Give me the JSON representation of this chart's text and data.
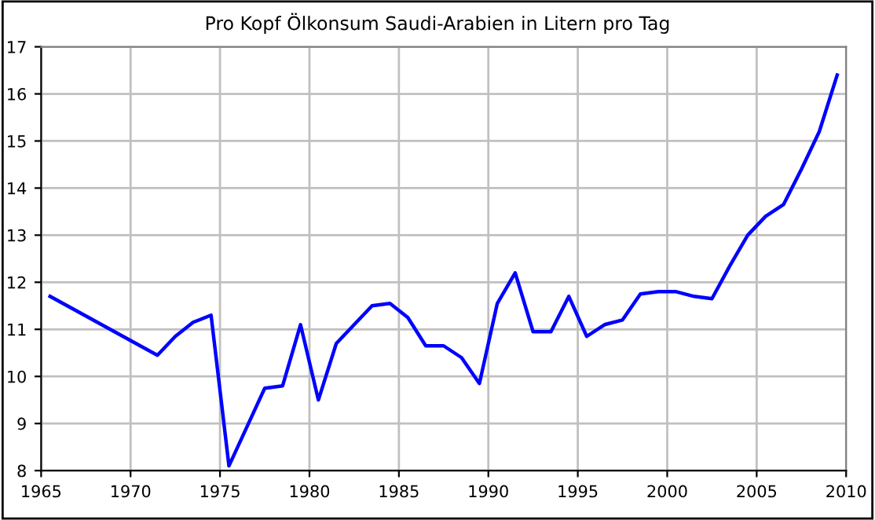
{
  "chart_data": {
    "type": "line",
    "title": "Pro Kopf Ölkonsum Saudi-Arabien in Litern pro Tag",
    "x": [
      1965.5,
      1971.5,
      1972.5,
      1973.5,
      1974.5,
      1975.5,
      1977.5,
      1978.5,
      1979.5,
      1980.5,
      1981.5,
      1982.5,
      1983.5,
      1984.5,
      1985.5,
      1986.5,
      1987.5,
      1988.5,
      1989.5,
      1990.5,
      1991.5,
      1992.5,
      1993.5,
      1994.5,
      1995.5,
      1996.5,
      1997.5,
      1998.5,
      1999.5,
      2000.5,
      2001.5,
      2002.5,
      2003.5,
      2004.5,
      2005.5,
      2006.5,
      2007.5,
      2008.5,
      2009.5
    ],
    "series": [
      {
        "color": "#0000ff",
        "values": [
          11.7,
          10.45,
          10.85,
          11.15,
          11.3,
          8.1,
          9.75,
          9.8,
          11.1,
          9.5,
          10.7,
          11.1,
          11.5,
          11.55,
          11.25,
          10.65,
          10.65,
          10.4,
          9.85,
          11.55,
          12.2,
          10.95,
          10.95,
          11.7,
          10.85,
          11.1,
          11.2,
          11.75,
          11.8,
          11.8,
          11.7,
          11.65,
          12.35,
          13.0,
          13.4,
          13.65,
          14.4,
          15.2,
          16.4
        ]
      }
    ],
    "xlim": [
      1965,
      2010
    ],
    "xticks": [
      1965,
      1970,
      1975,
      1980,
      1985,
      1990,
      1995,
      2000,
      2005,
      2010
    ],
    "ylim": [
      8,
      17
    ],
    "yticks": [
      8,
      9,
      10,
      11,
      12,
      13,
      14,
      15,
      16,
      17
    ],
    "grid": true,
    "legend": false,
    "marker": "none",
    "line_style": "solid"
  }
}
